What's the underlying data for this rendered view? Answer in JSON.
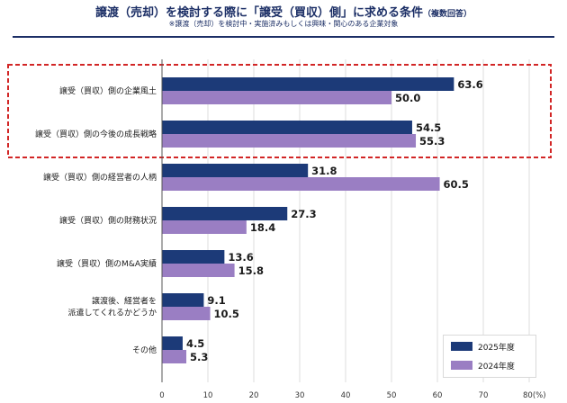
{
  "header": {
    "title": "譲渡（売却）を検討する際に「譲受（買収）側」に求める条件",
    "title_note": "（複数回答）",
    "subtitle": "※譲渡（売却）を検討中・実施済みもしくは興味・関心のある企業対象"
  },
  "colors": {
    "series_2025": "#1c3a78",
    "series_2024": "#9a7ec3",
    "highlight_border": "#d22626",
    "title": "#1c2f66"
  },
  "chart_data": {
    "type": "bar",
    "orientation": "horizontal",
    "title": "譲渡（売却）を検討する際に「譲受（買収）側」に求める条件（複数回答）",
    "categories": [
      [
        "譲受（買収）側の企業風土"
      ],
      [
        "譲受（買収）側の今後の成長戦略"
      ],
      [
        "譲受（買収）側の経営者の人柄"
      ],
      [
        "譲受（買収）側の財務状況"
      ],
      [
        "譲受（買収）側のM&A実績"
      ],
      [
        "譲渡後、経営者を",
        "派遣してくれるかどうか"
      ],
      [
        "その他"
      ]
    ],
    "series": [
      {
        "name": "2025年度",
        "values": [
          63.6,
          54.5,
          31.8,
          27.3,
          13.6,
          9.1,
          4.5
        ],
        "labels": [
          "63.6",
          "54.5",
          "31.8",
          "27.3",
          "13.6",
          "9.1",
          "4.5"
        ]
      },
      {
        "name": "2024年度",
        "values": [
          50.0,
          55.3,
          60.5,
          18.4,
          15.8,
          10.5,
          5.3
        ],
        "labels": [
          "50.0",
          "55.3",
          "60.5",
          "18.4",
          "15.8",
          "10.5",
          "5.3"
        ]
      }
    ],
    "xlim": [
      0,
      80
    ],
    "xticks": [
      "0",
      "10",
      "20",
      "30",
      "40",
      "50",
      "60",
      "70",
      "80"
    ],
    "xunit": "(%)",
    "highlighted_categories": [
      0,
      1
    ],
    "legend": {
      "position": "bottom-right"
    }
  }
}
